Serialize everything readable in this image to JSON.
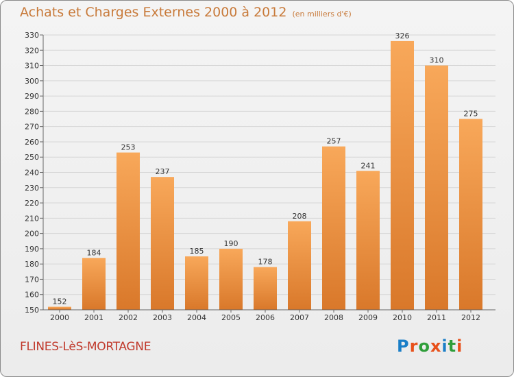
{
  "chart_title": "Achats et Charges Externes 2000 à 2012",
  "chart_unit": "(en milliers d'€)",
  "city": "FLINES-LèS-MORTAGNE",
  "logo": {
    "letters": [
      "P",
      "r",
      "o",
      "x",
      "i",
      "t",
      "i"
    ],
    "colors": [
      "#1a7ec7",
      "#e8501a",
      "#2f9e3a",
      "#e8501a",
      "#1a7ec7",
      "#2f9e3a",
      "#e8501a"
    ]
  },
  "colors": {
    "bar_light": "#f8a85a",
    "bar_dark": "#d9782a",
    "title": "#c87a3a",
    "city": "#c0392b"
  },
  "chart_data": {
    "type": "bar",
    "title": "Achats et Charges Externes 2000 à 2012",
    "xlabel": "",
    "ylabel": "",
    "ylim": [
      150,
      330
    ],
    "y_ticks": [
      150,
      160,
      170,
      180,
      190,
      200,
      210,
      220,
      230,
      240,
      250,
      260,
      270,
      280,
      290,
      300,
      310,
      320,
      330
    ],
    "grid": true,
    "categories": [
      "2000",
      "2001",
      "2002",
      "2003",
      "2004",
      "2005",
      "2006",
      "2007",
      "2008",
      "2009",
      "2010",
      "2011",
      "2012"
    ],
    "values": [
      152,
      184,
      253,
      237,
      185,
      190,
      178,
      208,
      257,
      241,
      326,
      310,
      275
    ]
  }
}
